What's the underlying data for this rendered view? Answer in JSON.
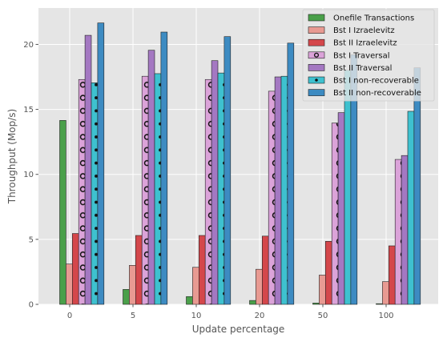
{
  "chart_data": {
    "type": "bar",
    "title": "",
    "xlabel": "Update percentage",
    "ylabel": "Throughput (Mop/s)",
    "categories": [
      "0",
      "5",
      "10",
      "20",
      "50",
      "100"
    ],
    "ylim": [
      0,
      22.8
    ],
    "yticks": [
      0,
      5,
      10,
      15,
      20
    ],
    "grid": true,
    "legend_position": "top-right",
    "series": [
      {
        "name": "Onefile Transactions",
        "color": "#4aa04a",
        "pattern": "none",
        "values": [
          14.15,
          1.15,
          0.6,
          0.3,
          0.1,
          0.05
        ]
      },
      {
        "name": "Bst I Izraelevitz",
        "color": "#e89a92",
        "pattern": "none",
        "values": [
          3.1,
          3.0,
          2.85,
          2.7,
          2.25,
          1.75
        ]
      },
      {
        "name": "Bst II Izraelevitz",
        "color": "#d4474b",
        "pattern": "none",
        "values": [
          5.45,
          5.3,
          5.3,
          5.25,
          4.85,
          4.5
        ]
      },
      {
        "name": "Bst I Traversal",
        "color": "#dba3d9",
        "pattern": "circles",
        "values": [
          17.3,
          17.55,
          17.3,
          16.4,
          13.95,
          11.15
        ]
      },
      {
        "name": "Bst II Traversal",
        "color": "#a478c2",
        "pattern": "none",
        "values": [
          20.7,
          19.55,
          18.75,
          17.5,
          14.75,
          11.45
        ]
      },
      {
        "name": "Bst I non-recoverable",
        "color": "#3ec1cf",
        "pattern": "dots",
        "values": [
          17.05,
          17.75,
          17.8,
          17.55,
          18.0,
          14.85
        ]
      },
      {
        "name": "Bst II non-recoverable",
        "color": "#3d8bc2",
        "pattern": "none",
        "values": [
          21.65,
          20.95,
          20.6,
          20.1,
          19.2,
          18.2
        ]
      }
    ]
  }
}
